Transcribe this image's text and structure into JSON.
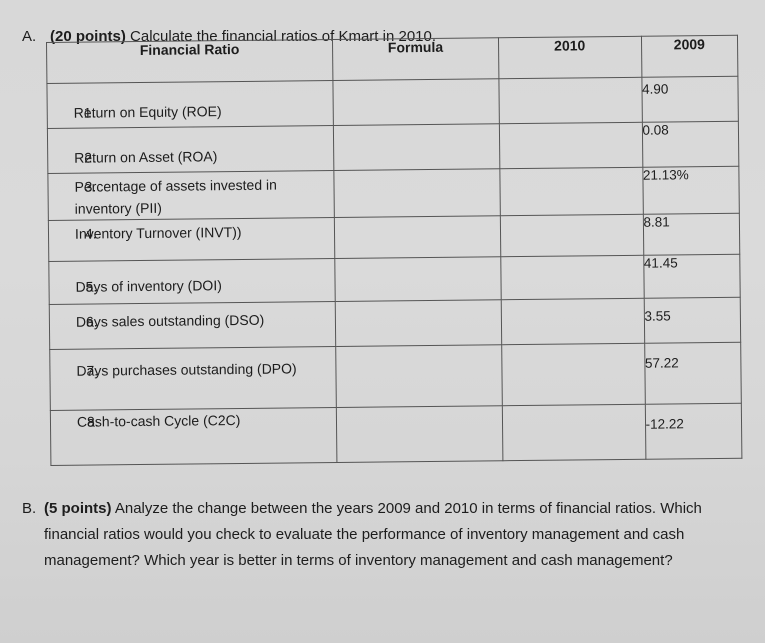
{
  "question_a": {
    "letter": "A.",
    "points": "(20 points)",
    "text": "Calculate the financial ratios of Kmart in 2010."
  },
  "table": {
    "headers": {
      "ratio": "Financial Ratio",
      "formula": "Formula",
      "year1": "2010",
      "year2": "2009"
    },
    "rows": [
      {
        "num": "1.",
        "name": "Return on Equity (ROE)",
        "formula": "",
        "v2010": "",
        "v2009": "4.90"
      },
      {
        "num": "2.",
        "name": "Return on Asset (ROA)",
        "formula": "",
        "v2010": "",
        "v2009": "0.08"
      },
      {
        "num": "3.",
        "name": "Percentage of assets invested in inventory (PII)",
        "formula": "",
        "v2010": "",
        "v2009": "21.13%"
      },
      {
        "num": "4.",
        "name": "Inventory Turnover (INVT))",
        "formula": "",
        "v2010": "",
        "v2009": "8.81"
      },
      {
        "num": "5.",
        "name": "Days of inventory (DOI)",
        "formula": "",
        "v2010": "",
        "v2009": "41.45"
      },
      {
        "num": "6.",
        "name": "Days sales outstanding (DSO)",
        "formula": "",
        "v2010": "",
        "v2009": "3.55"
      },
      {
        "num": "7.",
        "name": "Days purchases outstanding (DPO)",
        "formula": "",
        "v2010": "",
        "v2009": "57.22"
      },
      {
        "num": "8.",
        "name": "Cash-to-cash Cycle (C2C)",
        "formula": "",
        "v2010": "",
        "v2009": "-12.22"
      }
    ]
  },
  "question_b": {
    "letter": "B.",
    "points": "(5 points)",
    "text": "Analyze the change between the years 2009 and 2010 in terms of financial ratios. Which financial ratios would you check to evaluate the performance of inventory management and cash management? Which year is better in terms of inventory management and cash management?"
  }
}
